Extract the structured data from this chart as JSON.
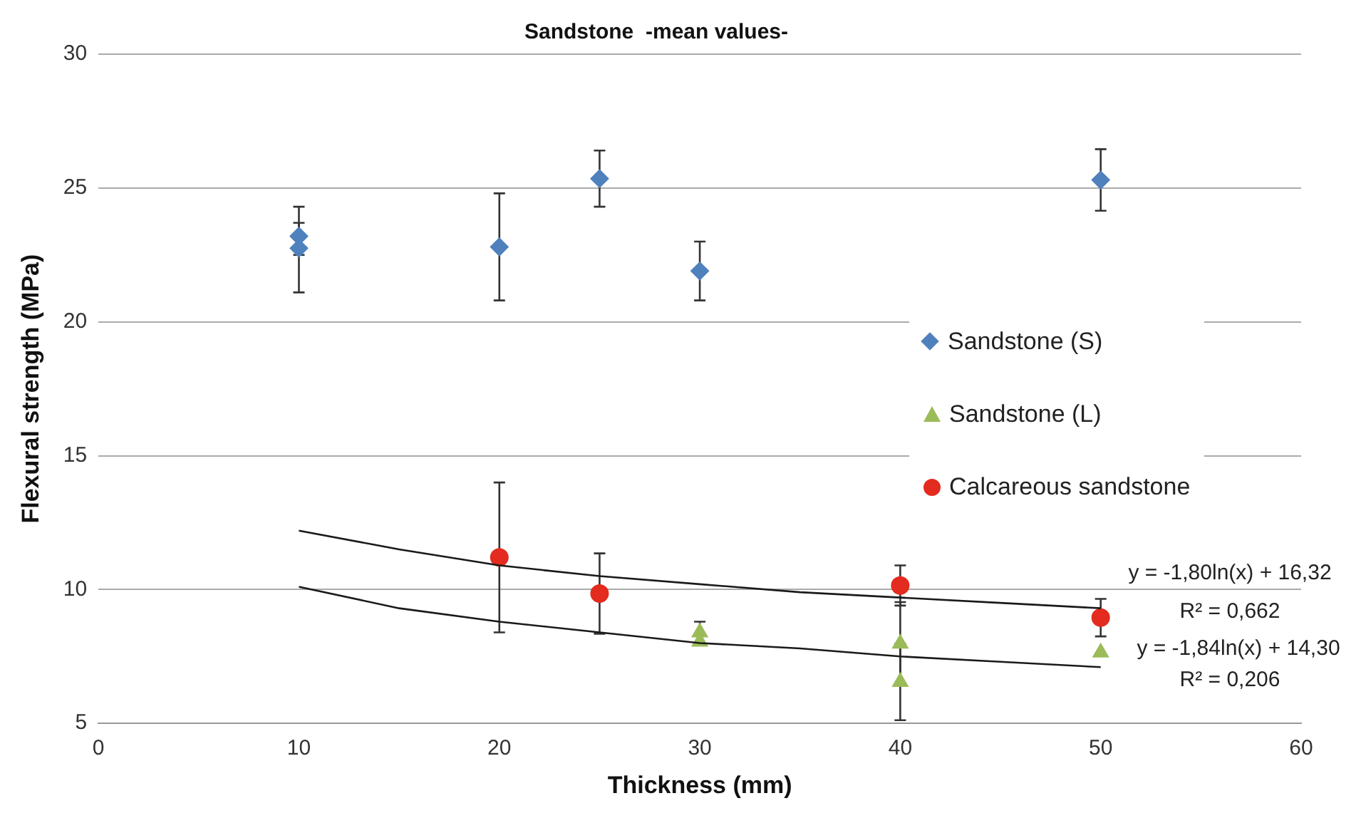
{
  "chart_data": {
    "type": "scatter",
    "title": "Sandstone  -mean values-",
    "xlabel": "Thickness (mm)",
    "ylabel": "Flexural strength (MPa)",
    "xlim": [
      0,
      60
    ],
    "xticks": [
      0,
      10,
      20,
      30,
      40,
      50,
      60
    ],
    "ylim": [
      5,
      30
    ],
    "yticks": [
      5,
      10,
      15,
      20,
      25,
      30
    ],
    "grid": "y",
    "legend": "right",
    "series": [
      {
        "name": "Sandstone (S)",
        "color": "#4f81bd",
        "marker": "diamond",
        "x": [
          10,
          10,
          20,
          25,
          30,
          50
        ],
        "values": [
          23.2,
          22.75,
          22.8,
          25.35,
          21.9,
          25.3
        ],
        "errors": [
          [
            22.5,
            24.3
          ],
          [
            21.1,
            23.7
          ],
          2.0,
          1.05,
          1.1,
          1.15
        ]
      },
      {
        "name": "Sandstone (L)",
        "color": "#9bbb59",
        "marker": "triangle",
        "x": [
          30,
          30,
          40,
          40,
          50
        ],
        "values": [
          8.4,
          8.05,
          7.98,
          6.55,
          7.65
        ],
        "errors": [
          0.4,
          null,
          1.55,
          1.43,
          null
        ]
      },
      {
        "name": "Calcareous sandstone",
        "color": "#e32b1f",
        "marker": "circle",
        "x": [
          20,
          25,
          40,
          50
        ],
        "values": [
          11.2,
          9.85,
          10.15,
          8.95
        ],
        "errors": [
          2.8,
          1.5,
          0.75,
          0.7
        ]
      },
      {
        "type": "line",
        "color": "#1a1a1a",
        "marker": "none",
        "line_style": "solid",
        "x": [
          10,
          15,
          20,
          25,
          30,
          35,
          40,
          45,
          50
        ],
        "values": [
          12.2,
          11.5,
          10.9,
          10.5,
          10.2,
          9.9,
          9.7,
          9.5,
          9.3
        ]
      },
      {
        "type": "line",
        "color": "#1a1a1a",
        "marker": "none",
        "line_style": "solid",
        "x": [
          10,
          15,
          20,
          25,
          30,
          35,
          40,
          45,
          50
        ],
        "values": [
          10.1,
          9.3,
          8.8,
          8.4,
          8.0,
          7.8,
          7.5,
          7.3,
          7.1
        ]
      }
    ],
    "annotations": [
      "y = -1,80ln(x) + 16,32",
      "R² = 0,662",
      "y = -1,84ln(x) + 14,30",
      "R² = 0,206"
    ]
  }
}
